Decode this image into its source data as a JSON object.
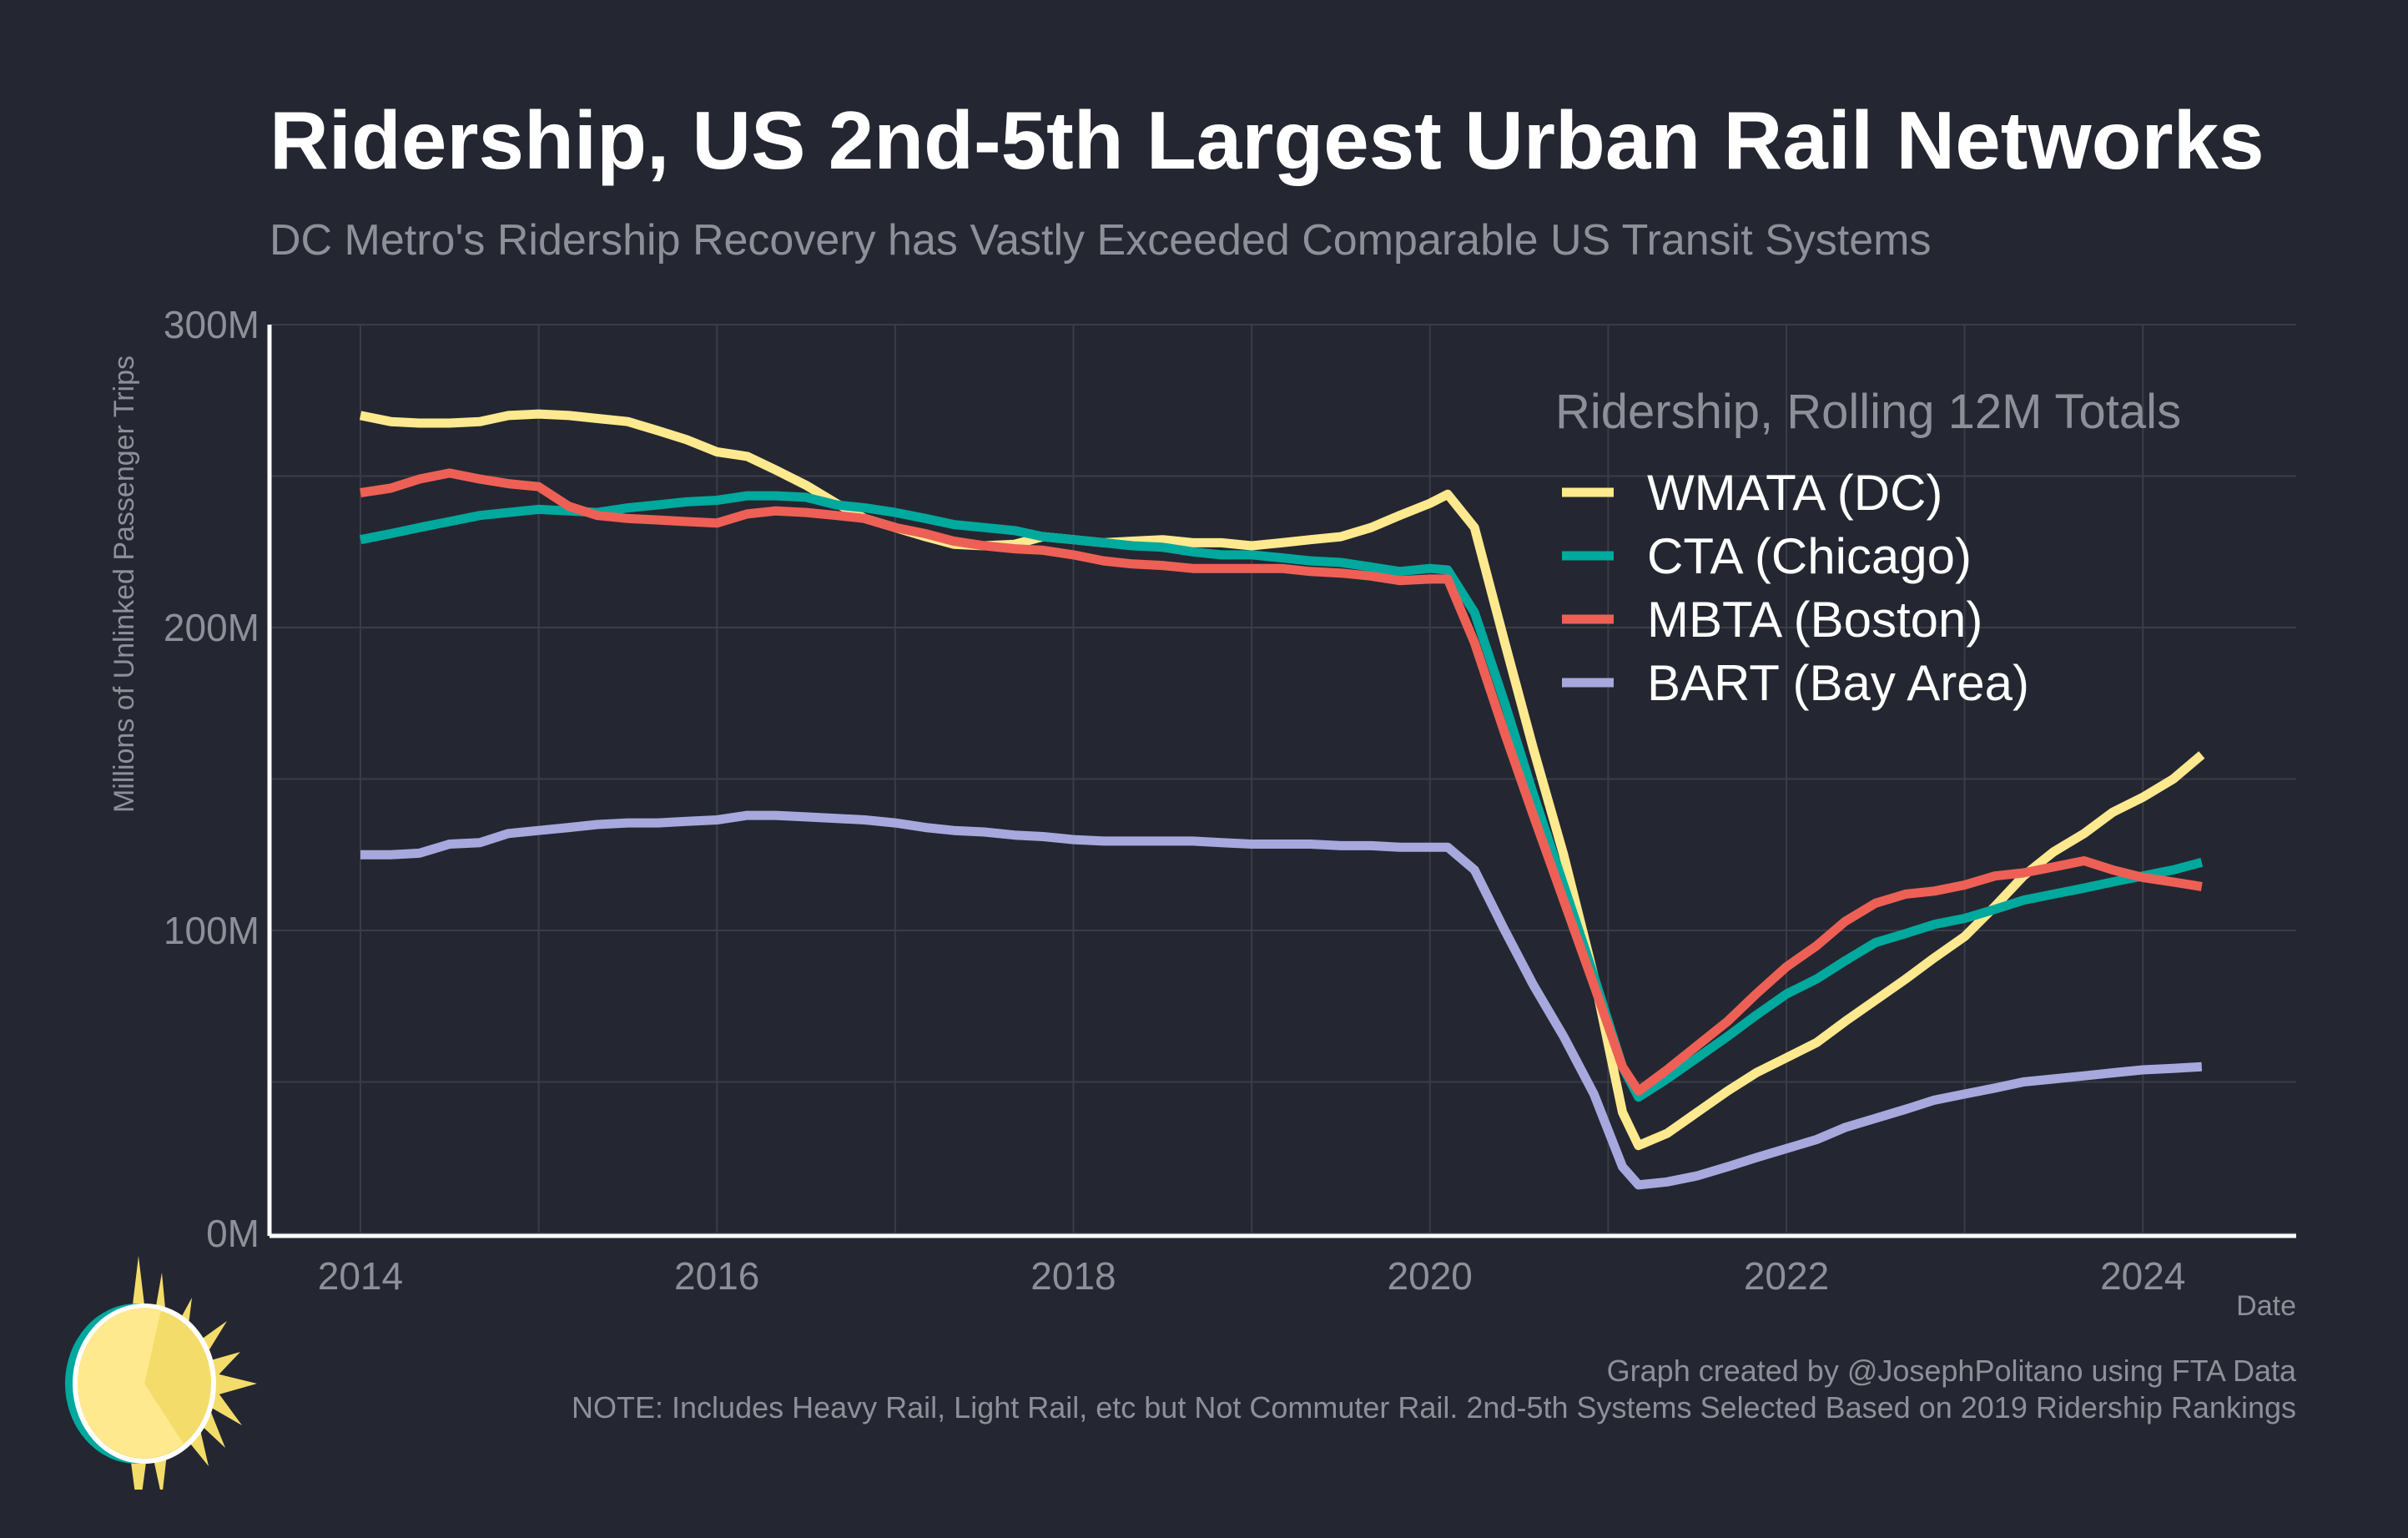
{
  "header": {
    "title": "Ridership, US 2nd-5th Largest Urban Rail Networks",
    "subtitle": "DC Metro's Ridership Recovery has Vastly Exceeded Comparable US Transit Systems"
  },
  "footer": {
    "credit": "Graph created by @JosephPolitano using FTA Data",
    "note": "NOTE: Includes Heavy Rail, Light Rail, etc but Not Commuter Rail. 2nd-5th Systems Selected Based on 2019 Ridership Rankings"
  },
  "logo": {
    "icon": "sun-logo-icon"
  },
  "colors": {
    "background": "#242731",
    "grid": "#3A3D46",
    "axis": "#FFFFFF"
  },
  "chart_data": {
    "type": "line",
    "title": "Ridership, US 2nd-5th Largest Urban Rail Networks",
    "subtitle": "DC Metro's Ridership Recovery has Vastly Exceeded Comparable US Transit Systems",
    "xlabel": "Date",
    "ylabel": "Millions of Unlinked Passenger Trips",
    "xlim": [
      2013.49,
      2024.86
    ],
    "ylim": [
      0,
      300
    ],
    "x_ticks": [
      2014,
      2016,
      2018,
      2020,
      2022,
      2024
    ],
    "x_tick_labels": [
      "2014",
      "2016",
      "2018",
      "2020",
      "2022",
      "2024"
    ],
    "y_ticks": [
      0,
      100,
      200,
      300
    ],
    "y_tick_labels": [
      "0M",
      "100M",
      "200M",
      "300M"
    ],
    "grid": true,
    "legend": {
      "title": "Ridership, Rolling 12M Totals",
      "position": "top-right"
    },
    "x": [
      2014.0,
      2014.17,
      2014.33,
      2014.5,
      2014.67,
      2014.83,
      2015.0,
      2015.17,
      2015.33,
      2015.5,
      2015.67,
      2015.83,
      2016.0,
      2016.17,
      2016.33,
      2016.5,
      2016.67,
      2016.83,
      2017.0,
      2017.17,
      2017.33,
      2017.5,
      2017.67,
      2017.83,
      2018.0,
      2018.17,
      2018.33,
      2018.5,
      2018.67,
      2018.83,
      2019.0,
      2019.17,
      2019.33,
      2019.5,
      2019.67,
      2019.83,
      2020.0,
      2020.1,
      2020.25,
      2020.42,
      2020.58,
      2020.75,
      2020.92,
      2021.08,
      2021.17,
      2021.33,
      2021.5,
      2021.67,
      2021.83,
      2022.0,
      2022.17,
      2022.33,
      2022.5,
      2022.67,
      2022.83,
      2023.0,
      2023.17,
      2023.33,
      2023.5,
      2023.67,
      2023.83,
      2024.0,
      2024.17,
      2024.33
    ],
    "series": [
      {
        "name": "WMATA (DC)",
        "color": "#FFE98F",
        "values": [
          270,
          268,
          267.5,
          267.5,
          268,
          270,
          270.5,
          270,
          269,
          268,
          265,
          262,
          258,
          256.5,
          252,
          247,
          241,
          236,
          233,
          230,
          227.5,
          227,
          227.5,
          230,
          229,
          228,
          228.5,
          229,
          228,
          228,
          227,
          228,
          229,
          230,
          233,
          237,
          241,
          244,
          233,
          195,
          160,
          125,
          85,
          40,
          29,
          33,
          40,
          47,
          53,
          58,
          63,
          70,
          77,
          84,
          91,
          98,
          108,
          118,
          126,
          132,
          139,
          144,
          150,
          158
        ]
      },
      {
        "name": "CTA (Chicago)",
        "color": "#00A99D",
        "values": [
          229,
          231,
          233,
          235,
          237,
          238,
          239,
          238.5,
          238,
          239.5,
          240.5,
          241.5,
          242,
          243.5,
          243.5,
          243,
          240.5,
          239.5,
          238,
          236,
          234,
          233,
          232,
          230,
          229,
          228,
          227,
          226.5,
          225,
          224,
          224,
          223,
          222,
          221.5,
          220,
          218.5,
          219.5,
          219,
          205,
          175,
          145,
          115,
          85,
          55,
          45,
          51,
          58,
          65,
          72,
          79,
          84,
          90,
          96,
          99,
          102,
          104,
          107,
          110,
          112,
          114,
          116,
          118,
          120,
          122.5
        ]
      },
      {
        "name": "MBTA (Boston)",
        "color": "#EE6055",
        "values": [
          244.5,
          246,
          249,
          251,
          249,
          247.5,
          246.5,
          240,
          237,
          236,
          235.5,
          235,
          234.5,
          237.5,
          238.5,
          238,
          237,
          236,
          233,
          231,
          228.5,
          227,
          226,
          225.5,
          224,
          222,
          221,
          220.5,
          219.5,
          219.5,
          219.5,
          219.5,
          218.5,
          218,
          217,
          215.5,
          216,
          216,
          195,
          165,
          138,
          110,
          82,
          55,
          47,
          54,
          62,
          70,
          79,
          88,
          95,
          103,
          109,
          112,
          113,
          115,
          118,
          119,
          121,
          123,
          120,
          117.5,
          116,
          114.5
        ]
      },
      {
        "name": "BART (Bay Area)",
        "color": "#A7A8DD",
        "values": [
          125,
          125,
          125.5,
          128.5,
          129,
          132,
          133,
          134,
          135,
          135.5,
          135.5,
          136,
          136.5,
          138,
          138,
          137.5,
          137,
          136.5,
          135.5,
          134,
          133,
          132.5,
          131.5,
          131,
          130,
          129.5,
          129.5,
          129.5,
          129.5,
          129,
          128.5,
          128.5,
          128.5,
          128,
          128,
          127.5,
          127.5,
          127.5,
          120,
          100,
          82,
          65,
          46,
          22,
          16,
          17,
          19,
          22,
          25,
          28,
          31,
          35,
          38,
          41,
          44,
          46,
          48,
          50,
          51,
          52,
          53,
          54,
          54.5,
          55
        ]
      }
    ]
  }
}
